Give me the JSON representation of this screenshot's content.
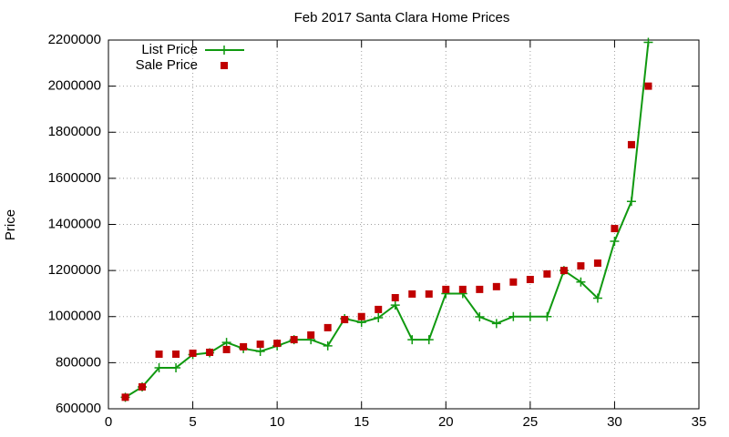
{
  "chart_data": {
    "type": "line",
    "title": "Feb 2017 Santa Clara Home Prices",
    "y_label": "Price",
    "x": [
      1,
      2,
      3,
      4,
      5,
      6,
      7,
      8,
      9,
      10,
      11,
      12,
      13,
      14,
      15,
      16,
      17,
      18,
      19,
      20,
      21,
      22,
      23,
      24,
      25,
      26,
      27,
      28,
      29,
      30,
      31,
      32
    ],
    "series": [
      {
        "name": "List Price",
        "color": "#109910",
        "style": "linespoints",
        "values": [
          650000,
          695000,
          778000,
          778000,
          835000,
          843000,
          888000,
          861000,
          849000,
          873000,
          900000,
          900000,
          873000,
          991000,
          975000,
          995000,
          1050000,
          900000,
          900000,
          1100000,
          1100000,
          999000,
          970000,
          1000000,
          1000000,
          1000000,
          1200000,
          1150000,
          1080000,
          1327000,
          1500000,
          2190000
        ]
      },
      {
        "name": "Sale Price",
        "color": "#c00000",
        "style": "points",
        "values": [
          650000,
          695000,
          837000,
          837000,
          841000,
          845000,
          857000,
          869000,
          880000,
          884000,
          900000,
          920000,
          952000,
          987000,
          1000000,
          1031000,
          1082000,
          1098000,
          1098000,
          1118000,
          1118000,
          1118000,
          1130000,
          1150000,
          1161000,
          1185000,
          1200000,
          1220000,
          1232000,
          1382000,
          1746000,
          2000000
        ]
      }
    ],
    "xlim": [
      0,
      35
    ],
    "xticks": [
      0,
      5,
      10,
      15,
      20,
      25,
      30,
      35
    ],
    "ylim": [
      600000,
      2200000
    ],
    "yticks": [
      600000,
      800000,
      1000000,
      1200000,
      1400000,
      1600000,
      1800000,
      2000000,
      2200000
    ],
    "grid": true,
    "legend": "top-left"
  }
}
